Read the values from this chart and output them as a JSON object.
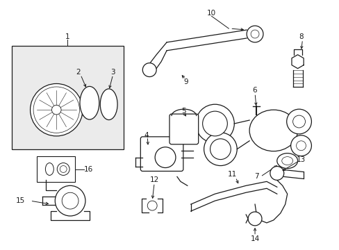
{
  "background": "#ffffff",
  "line_color": "#1a1a1a",
  "label_color": "#111111",
  "box_fill": "#ebebeb",
  "lw": 0.9,
  "fontsize": 7.5
}
